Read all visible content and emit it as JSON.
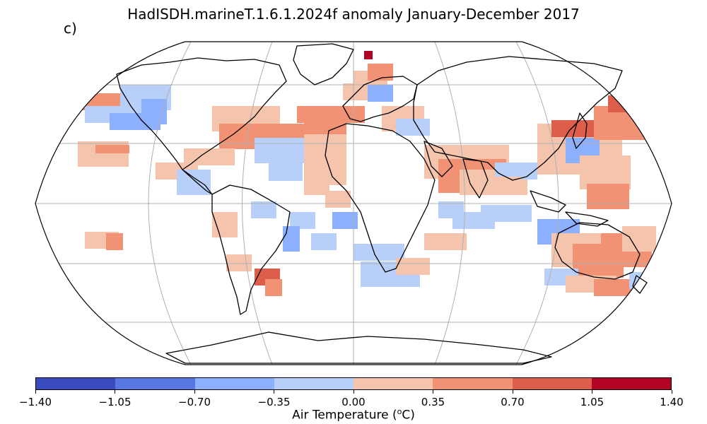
{
  "title": "HadISDH.marineT.1.6.1.2024f anomaly January-December 2017",
  "panel_label": "c)",
  "colorbar": {
    "label": "Air Temperature (",
    "label_sup": "o",
    "label_unit": "C)",
    "ticks": [
      "−1.40",
      "−1.05",
      "−0.70",
      "−0.35",
      "0.00",
      "0.35",
      "0.70",
      "1.05",
      "1.40"
    ],
    "colors": [
      "#3b4cc0",
      "#5977e3",
      "#8db0fe",
      "#b8d0f9",
      "#f5c4ac",
      "#f29274",
      "#dd5f4b",
      "#b40426"
    ]
  },
  "map": {
    "projection": "Robinson",
    "graticule": true,
    "gridlines": "grey",
    "coastline_color": "#000000"
  }
}
